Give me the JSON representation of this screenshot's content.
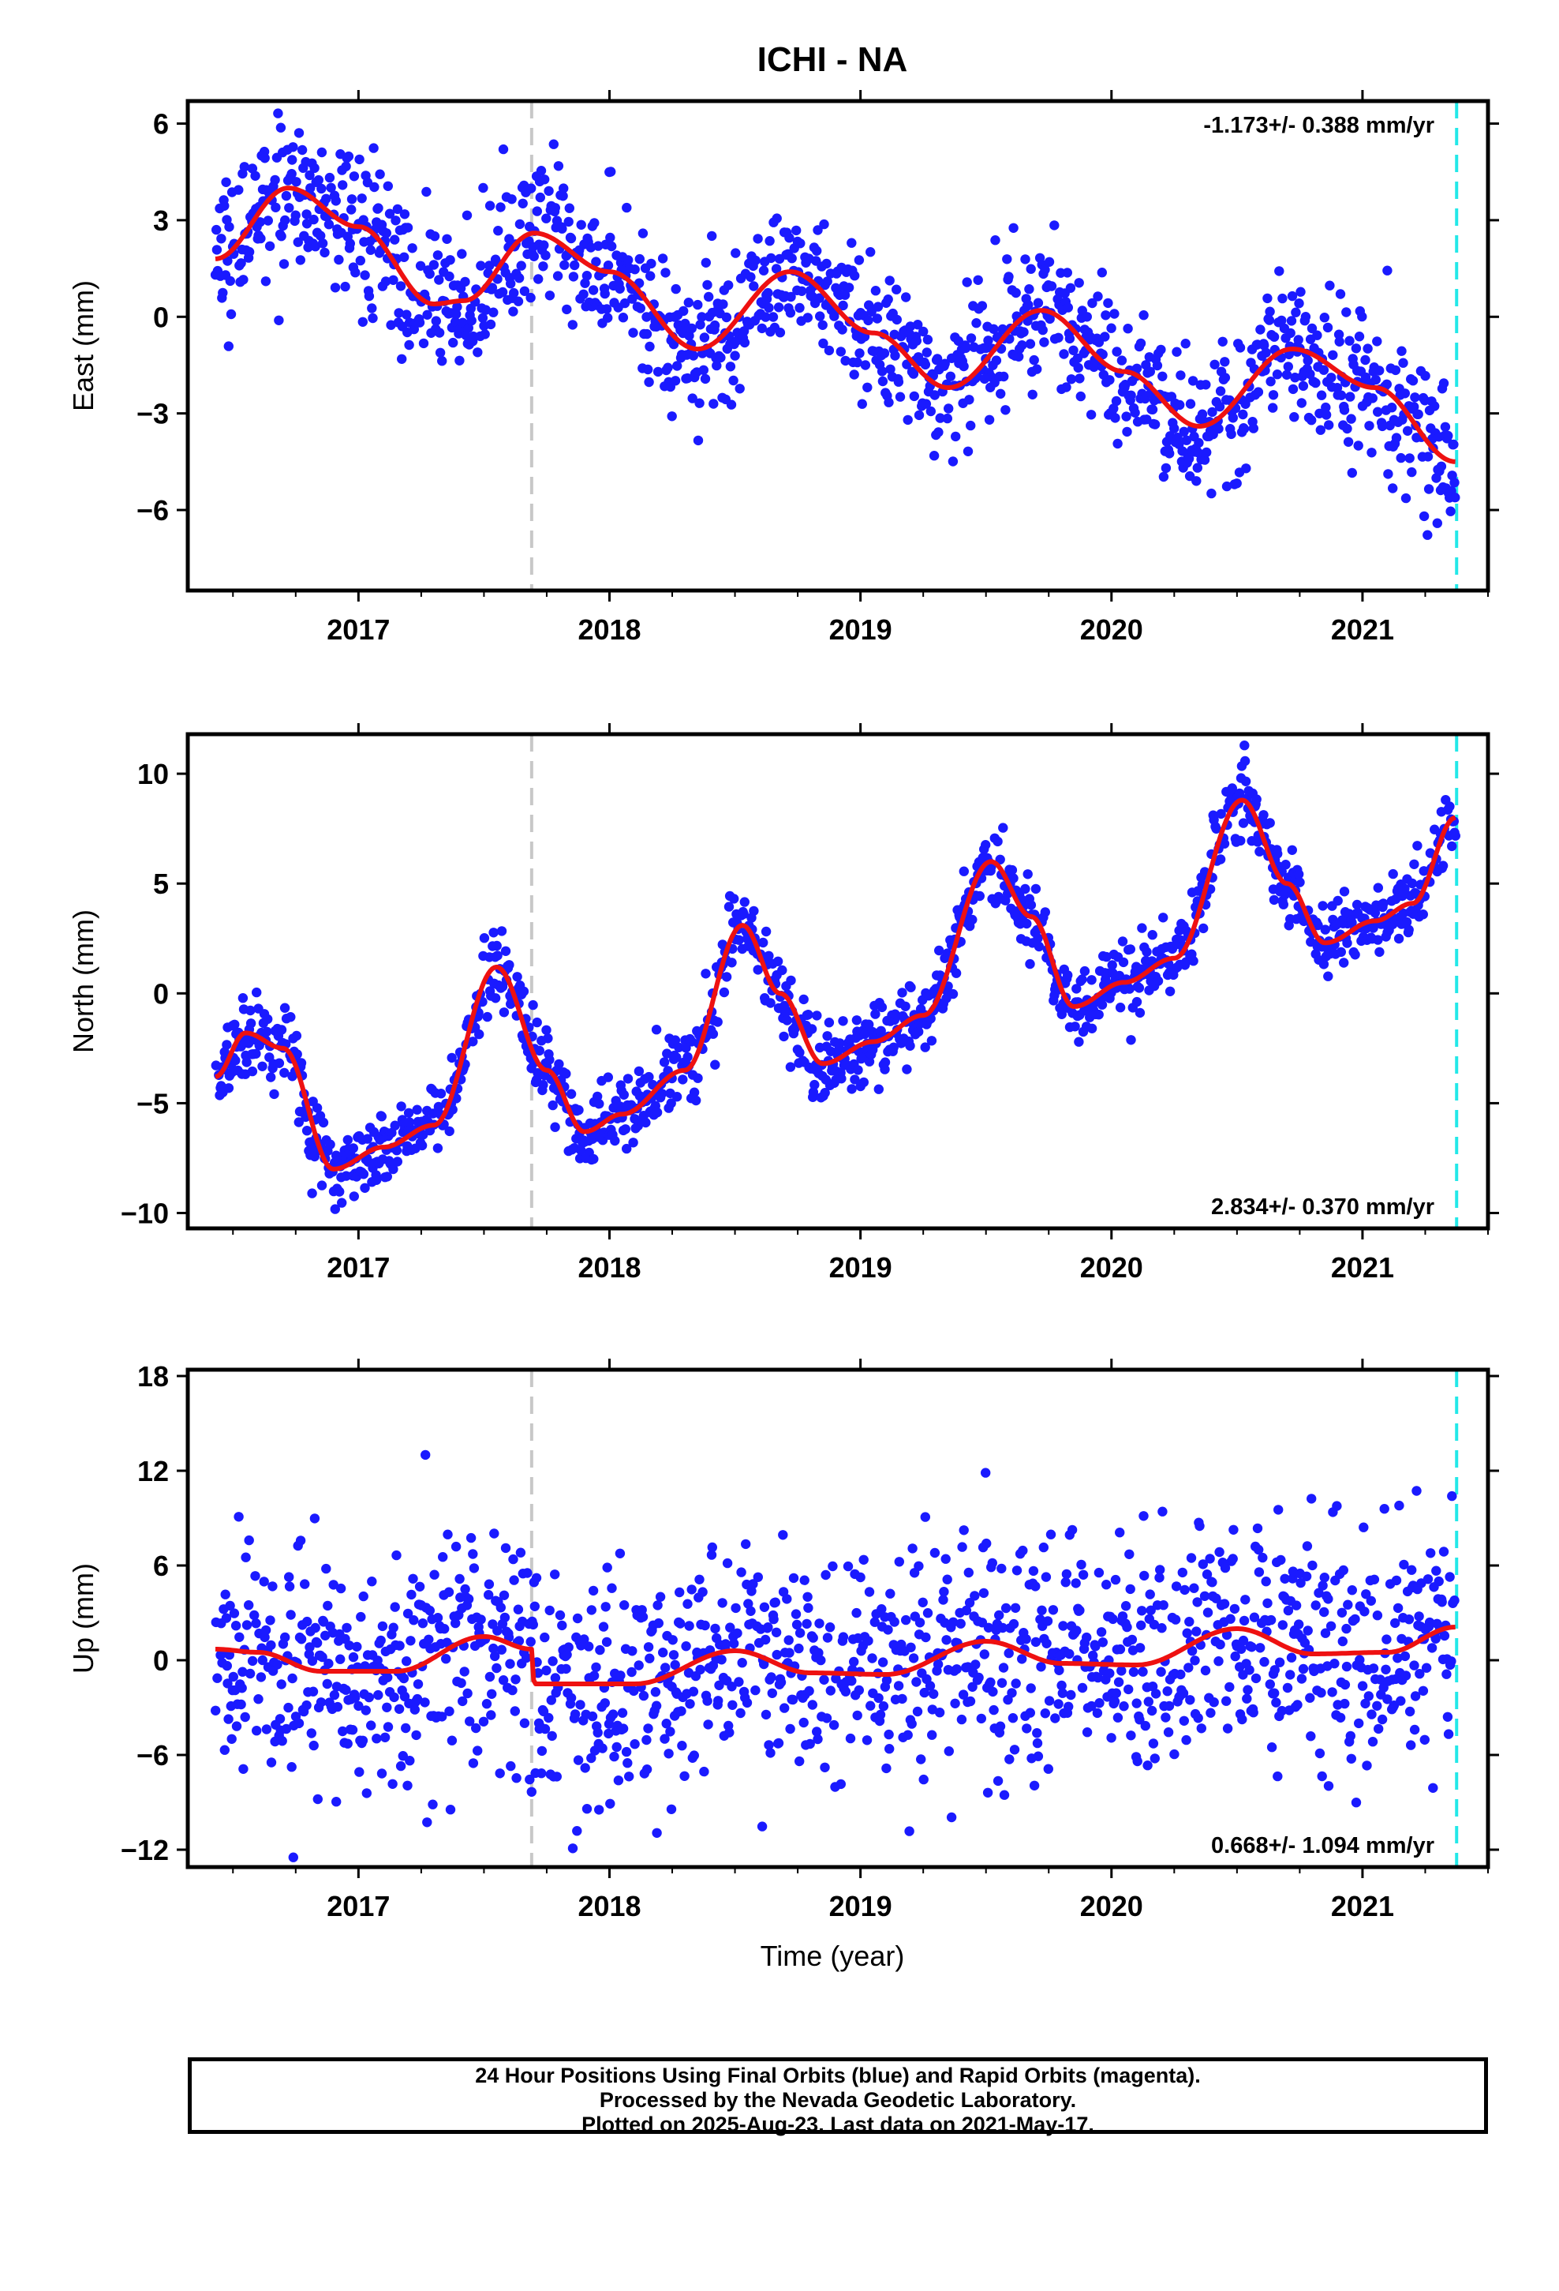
{
  "title": "ICHI - NA",
  "xlabel": "Time (year)",
  "colors": {
    "points": "#1a1aff",
    "fit": "#ee1111",
    "event_line": "#c8c8c8",
    "last_data_line": "#22e8e8",
    "frame": "#000000"
  },
  "caption": {
    "line1": "24 Hour Positions Using Final Orbits (blue) and Rapid Orbits (magenta).",
    "line2": "Processed by the Nevada Geodetic Laboratory.",
    "line3": "Plotted on 2025-Aug-23. Last data on 2021-May-17."
  },
  "chart_data": [
    {
      "type": "scatter",
      "component": "East",
      "ylabel": "East (mm)",
      "velocity_label": "-1.173+/- 0.388 mm/yr",
      "velocity_label_position": "top-right",
      "x_range": [
        2016.32,
        2021.5
      ],
      "y_range": [
        -8.5,
        6.7
      ],
      "x_ticks": [
        2017,
        2018,
        2019,
        2020,
        2021
      ],
      "y_ticks": [
        -6,
        -3,
        0,
        3,
        6
      ],
      "event_line_x": 2017.69,
      "last_data_x": 2021.375,
      "data_start": 2016.43,
      "data_end": 2021.37,
      "scatter_sd": 1.15,
      "fit_knots": {
        "x": [
          2016.43,
          2016.72,
          2017.0,
          2017.3,
          2017.42,
          2017.7,
          2018.0,
          2018.35,
          2018.72,
          2019.05,
          2019.35,
          2019.72,
          2020.05,
          2020.35,
          2020.72,
          2021.05,
          2021.37
        ],
        "y": [
          1.8,
          4.0,
          2.8,
          0.4,
          0.5,
          2.6,
          1.4,
          -1.0,
          1.4,
          -0.5,
          -2.2,
          0.2,
          -1.7,
          -3.4,
          -1.0,
          -2.2,
          -4.5
        ]
      }
    },
    {
      "type": "scatter",
      "component": "North",
      "ylabel": "North (mm)",
      "velocity_label": "2.834+/- 0.370 mm/yr",
      "velocity_label_position": "bottom-right",
      "x_range": [
        2016.32,
        2021.5
      ],
      "y_range": [
        -10.7,
        11.8
      ],
      "x_ticks": [
        2017,
        2018,
        2019,
        2020,
        2021
      ],
      "y_ticks": [
        -10,
        -5,
        0,
        5,
        10
      ],
      "event_line_x": 2017.69,
      "last_data_x": 2021.375,
      "data_start": 2016.43,
      "data_end": 2021.37,
      "scatter_sd": 0.9,
      "fit_knots": {
        "x": [
          2016.43,
          2016.55,
          2016.7,
          2016.9,
          2017.1,
          2017.3,
          2017.55,
          2017.75,
          2017.9,
          2018.05,
          2018.3,
          2018.53,
          2018.68,
          2018.85,
          2019.05,
          2019.25,
          2019.52,
          2019.68,
          2019.85,
          2020.05,
          2020.25,
          2020.52,
          2020.7,
          2020.85,
          2021.05,
          2021.2,
          2021.37
        ],
        "y": [
          -3.8,
          -1.8,
          -2.5,
          -8.0,
          -7.0,
          -6.0,
          1.2,
          -3.5,
          -6.3,
          -5.5,
          -3.5,
          3.1,
          0.0,
          -3.2,
          -2.2,
          -1.0,
          6.0,
          3.5,
          -0.6,
          0.5,
          1.6,
          8.8,
          5.0,
          2.3,
          3.3,
          4.1,
          8.0
        ]
      }
    },
    {
      "type": "scatter",
      "component": "Up",
      "ylabel": "Up (mm)",
      "velocity_label": "0.668+/- 1.094 mm/yr",
      "velocity_label_position": "bottom-right",
      "x_range": [
        2016.32,
        2021.5
      ],
      "y_range": [
        -13.1,
        18.4
      ],
      "x_ticks": [
        2017,
        2018,
        2019,
        2020,
        2021
      ],
      "y_ticks": [
        -12,
        -6,
        0,
        6,
        12,
        18
      ],
      "event_line_x": 2017.69,
      "last_data_x": 2021.375,
      "data_start": 2016.43,
      "data_end": 2021.37,
      "scatter_sd": 3.8,
      "fit_knots": {
        "x": [
          2016.43,
          2016.6,
          2016.85,
          2017.15,
          2017.5,
          2017.69,
          2017.7,
          2018.1,
          2018.5,
          2018.8,
          2019.1,
          2019.5,
          2019.8,
          2020.1,
          2020.5,
          2020.8,
          2021.1,
          2021.37
        ],
        "y": [
          0.7,
          0.5,
          -0.7,
          -0.7,
          1.5,
          0.7,
          -1.5,
          -1.5,
          0.6,
          -0.8,
          -0.9,
          1.2,
          -0.2,
          -0.3,
          2.0,
          0.4,
          0.5,
          2.1
        ]
      }
    }
  ]
}
